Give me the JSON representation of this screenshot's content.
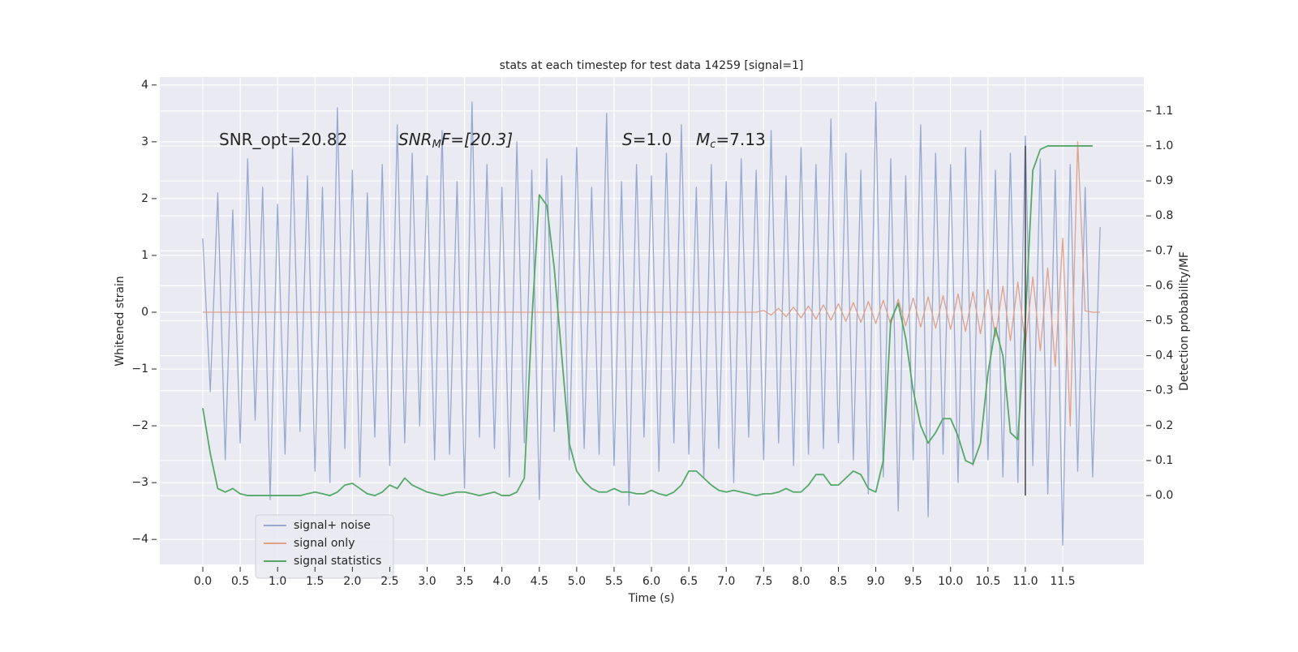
{
  "chart_data": {
    "type": "line",
    "title": "stats at each timestep for test data 14259 [signal=1]",
    "xlabel": "Time (s)",
    "ylabel": "Whitened strain",
    "y2label": "Detection probability/MF",
    "annotations": [
      [
        "SNR_opt=20.82"
      ],
      [
        "SNR",
        "M",
        "F=[20.3]"
      ],
      [
        "S",
        "=1.0"
      ],
      [
        "M",
        "c",
        "=7.13"
      ]
    ],
    "x": [
      0,
      0.1,
      0.2,
      0.3,
      0.4,
      0.5,
      0.6,
      0.7,
      0.8,
      0.9,
      1,
      1.1,
      1.2,
      1.3,
      1.4,
      1.5,
      1.6,
      1.7,
      1.8,
      1.9,
      2,
      2.1,
      2.2,
      2.3,
      2.4,
      2.5,
      2.6,
      2.7,
      2.8,
      2.9,
      3,
      3.1,
      3.2,
      3.3,
      3.4,
      3.5,
      3.6,
      3.7,
      3.8,
      3.9,
      4,
      4.1,
      4.2,
      4.3,
      4.4,
      4.5,
      4.6,
      4.7,
      4.8,
      4.9,
      5,
      5.1,
      5.2,
      5.3,
      5.4,
      5.5,
      5.6,
      5.7,
      5.8,
      5.9,
      6,
      6.1,
      6.2,
      6.3,
      6.4,
      6.5,
      6.6,
      6.7,
      6.8,
      6.9,
      7,
      7.1,
      7.2,
      7.3,
      7.4,
      7.5,
      7.6,
      7.7,
      7.8,
      7.9,
      8,
      8.1,
      8.2,
      8.3,
      8.4,
      8.5,
      8.6,
      8.7,
      8.8,
      8.9,
      9,
      9.1,
      9.2,
      9.3,
      9.4,
      9.5,
      9.6,
      9.7,
      9.8,
      9.9,
      10,
      10.1,
      10.2,
      10.3,
      10.4,
      10.5,
      10.6,
      10.7,
      10.8,
      10.9,
      11,
      11.1,
      11.2,
      11.3,
      11.4,
      11.5,
      11.6,
      11.7,
      11.8,
      11.9,
      12
    ],
    "series": [
      {
        "name": "signal+ noise",
        "color": "#98a8d0",
        "values": [
          1.3,
          -1.4,
          2.1,
          -2.6,
          1.8,
          -2.3,
          2.7,
          -1.9,
          2.2,
          -3.3,
          1.9,
          -2.5,
          2.9,
          -2.1,
          2.4,
          -2.8,
          2.2,
          -3.0,
          3.6,
          -2.4,
          2.5,
          -2.9,
          2.1,
          -2.2,
          2.6,
          -2.7,
          3.3,
          -2.3,
          2.8,
          -2.0,
          2.4,
          -2.6,
          3.2,
          -2.5,
          2.3,
          -3.1,
          3.7,
          -2.2,
          2.6,
          -2.4,
          2.2,
          -2.9,
          3.0,
          -2.3,
          2.5,
          -3.3,
          2.7,
          -2.1,
          2.4,
          -2.6,
          2.9,
          -2.4,
          2.2,
          -2.5,
          3.5,
          -2.7,
          2.3,
          -3.4,
          2.6,
          -2.2,
          2.4,
          -2.8,
          2.8,
          -2.3,
          3.3,
          -2.5,
          2.2,
          -2.9,
          2.6,
          -2.4,
          2.3,
          -3.0,
          2.7,
          -2.2,
          2.5,
          -2.6,
          3.2,
          -2.3,
          2.4,
          -2.7,
          2.9,
          -2.5,
          2.6,
          -2.4,
          3.4,
          -2.3,
          2.8,
          -2.6,
          2.5,
          -3.2,
          3.7,
          -2.9,
          2.7,
          -3.5,
          2.4,
          -2.6,
          3.3,
          -3.6,
          2.8,
          -2.5,
          2.6,
          -3.0,
          2.9,
          -2.7,
          3.2,
          -2.6,
          2.5,
          -2.9,
          2.8,
          -3.0,
          3.1,
          -2.7,
          2.7,
          -3.2,
          2.5,
          -4.1,
          2.6,
          -2.8,
          2.2,
          -2.9,
          1.5
        ]
      },
      {
        "name": "signal only",
        "color": "#e0a08a",
        "values": [
          0,
          0,
          0,
          0,
          0,
          0,
          0,
          0,
          0,
          0,
          0,
          0,
          0,
          0,
          0,
          0,
          0,
          0,
          0,
          0,
          0,
          0,
          0,
          0,
          0,
          0,
          0,
          0,
          0,
          0,
          0,
          0,
          0,
          0,
          0,
          0,
          0,
          0,
          0,
          0,
          0,
          0,
          0,
          0,
          0,
          0,
          0,
          0,
          0,
          0,
          0,
          0,
          0,
          0,
          0,
          0,
          0,
          0,
          0,
          0,
          0,
          0,
          0,
          0,
          0,
          0,
          0,
          0,
          0,
          0,
          0,
          0,
          0,
          0,
          0,
          0.03,
          -0.05,
          0.07,
          -0.08,
          0.09,
          -0.1,
          0.11,
          -0.12,
          0.13,
          -0.14,
          0.15,
          -0.16,
          0.17,
          -0.18,
          0.19,
          -0.2,
          0.21,
          -0.22,
          0.23,
          -0.24,
          0.25,
          -0.26,
          0.27,
          -0.28,
          0.29,
          -0.3,
          0.32,
          -0.34,
          0.36,
          -0.38,
          0.4,
          -0.43,
          0.46,
          -0.5,
          0.53,
          -0.57,
          0.62,
          -0.68,
          0.78,
          -0.95,
          1.3,
          -2.0,
          3.0,
          0.02,
          0,
          0
        ]
      },
      {
        "name": "signal statistics",
        "color": "#55a868",
        "axis": "y2",
        "values": [
          0.25,
          0.12,
          0.02,
          0.01,
          0.02,
          0.005,
          0,
          0,
          0,
          0,
          0,
          0,
          0,
          0,
          0.005,
          0.01,
          0.005,
          0,
          0.01,
          0.03,
          0.035,
          0.02,
          0.005,
          0,
          0.01,
          0.03,
          0.02,
          0.05,
          0.03,
          0.02,
          0.01,
          0.005,
          0,
          0.005,
          0.01,
          0.01,
          0.005,
          0,
          0.005,
          0.01,
          0,
          0,
          0.01,
          0.05,
          0.5,
          0.86,
          0.83,
          0.65,
          0.4,
          0.15,
          0.07,
          0.04,
          0.02,
          0.01,
          0.01,
          0.02,
          0.01,
          0.01,
          0.005,
          0.005,
          0.015,
          0.005,
          0,
          0.01,
          0.03,
          0.07,
          0.07,
          0.05,
          0.03,
          0.015,
          0.01,
          0.015,
          0.01,
          0.005,
          0,
          0.005,
          0.005,
          0.01,
          0.02,
          0.01,
          0.01,
          0.03,
          0.06,
          0.06,
          0.03,
          0.03,
          0.05,
          0.07,
          0.06,
          0.02,
          0.01,
          0.1,
          0.5,
          0.55,
          0.45,
          0.3,
          0.2,
          0.15,
          0.18,
          0.22,
          0.22,
          0.17,
          0.1,
          0.09,
          0.15,
          0.35,
          0.48,
          0.4,
          0.18,
          0.16,
          0.5,
          0.93,
          0.99,
          1.0,
          1.0,
          1.0,
          1.0,
          1.0,
          1.0,
          1.0,
          null
        ]
      }
    ],
    "vline": {
      "x": 11.0,
      "y2": [
        0,
        1
      ],
      "color": "#444444"
    },
    "xlim": [
      -0.575,
      12.585
    ],
    "xticks": [
      {
        "value": 0,
        "label": "0.0"
      },
      0.5,
      {
        "value": 1,
        "label": "1.0"
      },
      1.5,
      {
        "value": 2,
        "label": "2.0"
      },
      2.5,
      {
        "value": 3,
        "label": "3.0"
      },
      3.5,
      {
        "value": 4,
        "label": "4.0"
      },
      4.5,
      {
        "value": 5,
        "label": "5.0"
      },
      5.5,
      {
        "value": 6,
        "label": "6.0"
      },
      6.5,
      {
        "value": 7,
        "label": "7.0"
      },
      7.5,
      {
        "value": 8,
        "label": "8.0"
      },
      8.5,
      {
        "value": 9,
        "label": "9.0"
      },
      9.5,
      {
        "value": 10,
        "label": "10.0"
      },
      10.5,
      {
        "value": 11,
        "label": "11.0"
      },
      11.5
    ],
    "ylim": [
      -4.44,
      4.14
    ],
    "yticks": [
      {
        "value": -4,
        "label": "−4"
      },
      {
        "value": -3,
        "label": "−3"
      },
      {
        "value": -2,
        "label": "−2"
      },
      {
        "value": -1,
        "label": "−1"
      },
      0,
      1,
      2,
      3,
      4
    ],
    "y2lim": [
      -0.197,
      1.197
    ],
    "y2ticks": [
      {
        "value": 0,
        "label": "0.0"
      },
      0.1,
      0.2,
      0.3,
      0.4,
      0.5,
      0.6,
      0.7,
      0.8,
      0.9,
      {
        "value": 1,
        "label": "1.0"
      },
      1.1
    ],
    "grid": true,
    "legend": "lower left"
  }
}
